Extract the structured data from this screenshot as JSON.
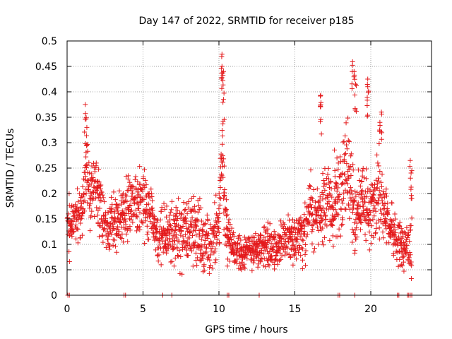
{
  "chart_data": {
    "type": "scatter",
    "title": "Day 147 of 2022, SRMTID for receiver p185",
    "xlabel": "GPS time / hours",
    "ylabel": "SRMTID / TECUs",
    "xlim": [
      0,
      24
    ],
    "ylim": [
      0,
      0.5
    ],
    "grid": true,
    "marker": "plus",
    "color": "#e41a1c",
    "x_ticks": [
      0,
      5,
      10,
      15,
      20
    ],
    "x_tick_labels": [
      "0",
      "5",
      "10",
      "15",
      "20"
    ],
    "y_ticks": [
      0,
      0.05,
      0.1,
      0.15,
      0.2,
      0.25,
      0.3,
      0.35,
      0.4,
      0.45,
      0.5
    ],
    "y_tick_labels": [
      "0",
      "0.05",
      "0.1",
      "0.15",
      "0.2",
      "0.25",
      "0.3",
      "0.35",
      "0.4",
      "0.45",
      "0.5"
    ],
    "envelope": {
      "x": [
        0.0,
        0.5,
        1.0,
        1.2,
        1.5,
        2.0,
        2.5,
        3.0,
        3.5,
        4.0,
        4.5,
        5.0,
        5.5,
        6.0,
        6.5,
        7.0,
        7.5,
        8.0,
        8.5,
        9.0,
        9.5,
        10.0,
        10.2,
        10.5,
        11.0,
        11.5,
        12.0,
        12.5,
        13.0,
        13.5,
        14.0,
        14.5,
        15.0,
        15.5,
        16.0,
        16.5,
        17.0,
        17.5,
        18.0,
        18.5,
        19.0,
        19.5,
        20.0,
        20.5,
        21.0,
        21.5,
        22.0,
        22.5
      ],
      "center": [
        0.13,
        0.15,
        0.16,
        0.26,
        0.2,
        0.21,
        0.14,
        0.14,
        0.15,
        0.17,
        0.18,
        0.19,
        0.16,
        0.12,
        0.12,
        0.13,
        0.12,
        0.13,
        0.12,
        0.11,
        0.1,
        0.14,
        0.3,
        0.12,
        0.09,
        0.08,
        0.09,
        0.09,
        0.1,
        0.09,
        0.1,
        0.11,
        0.11,
        0.12,
        0.17,
        0.16,
        0.18,
        0.17,
        0.2,
        0.26,
        0.15,
        0.18,
        0.16,
        0.2,
        0.15,
        0.12,
        0.1,
        0.1
      ],
      "spread": [
        0.05,
        0.04,
        0.05,
        0.07,
        0.06,
        0.07,
        0.05,
        0.05,
        0.05,
        0.06,
        0.06,
        0.06,
        0.06,
        0.05,
        0.05,
        0.06,
        0.06,
        0.06,
        0.06,
        0.06,
        0.05,
        0.06,
        0.1,
        0.05,
        0.03,
        0.03,
        0.03,
        0.03,
        0.04,
        0.04,
        0.04,
        0.04,
        0.04,
        0.05,
        0.06,
        0.06,
        0.07,
        0.07,
        0.08,
        0.1,
        0.07,
        0.07,
        0.06,
        0.08,
        0.05,
        0.04,
        0.04,
        0.05
      ]
    },
    "peaks": [
      {
        "x": 1.2,
        "y": 0.375
      },
      {
        "x": 1.3,
        "y": 0.33
      },
      {
        "x": 10.2,
        "y": 0.474
      },
      {
        "x": 10.2,
        "y": 0.45
      },
      {
        "x": 10.3,
        "y": 0.44
      },
      {
        "x": 10.3,
        "y": 0.385
      },
      {
        "x": 16.7,
        "y": 0.393
      },
      {
        "x": 16.7,
        "y": 0.375
      },
      {
        "x": 18.8,
        "y": 0.459
      },
      {
        "x": 18.9,
        "y": 0.44
      },
      {
        "x": 19.0,
        "y": 0.415
      },
      {
        "x": 19.8,
        "y": 0.425
      },
      {
        "x": 19.8,
        "y": 0.41
      },
      {
        "x": 20.7,
        "y": 0.36
      },
      {
        "x": 20.6,
        "y": 0.34
      },
      {
        "x": 22.6,
        "y": 0.265
      },
      {
        "x": 22.7,
        "y": 0.245
      }
    ],
    "zero_markers_x": [
      0.05,
      0.15,
      3.75,
      3.85,
      6.3,
      6.9,
      10.55,
      10.65,
      12.65,
      17.85,
      17.95,
      18.95,
      21.75,
      21.85,
      22.4,
      22.5,
      22.6,
      22.7
    ]
  }
}
